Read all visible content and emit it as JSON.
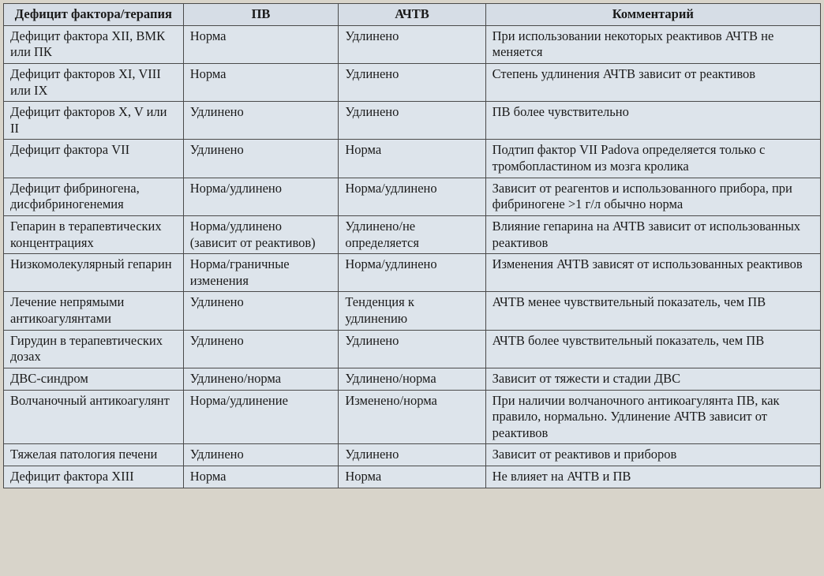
{
  "table": {
    "columns": [
      "Дефицит фактора/терапия",
      "ПВ",
      "АЧТВ",
      "Комментарий"
    ],
    "column_widths": [
      "22%",
      "19%",
      "18%",
      "41%"
    ],
    "header_background": "#d6dde6",
    "cell_background": "#dde4eb",
    "border_color": "#4a4a4a",
    "font_family": "Times New Roman",
    "font_size_pt": 12,
    "rows": [
      {
        "deficit": "Дефицит фактора XII, ВМК или ПК",
        "pv": "Норма",
        "aptt": "Удлинено",
        "comment": "При использовании некоторых реактивов АЧТВ не меняется"
      },
      {
        "deficit": "Дефицит факторов XI, VIII или IX",
        "pv": "Норма",
        "aptt": "Удлинено",
        "comment": "Степень удлинения АЧТВ зависит от реактивов"
      },
      {
        "deficit": "Дефицит факторов X, V или II",
        "pv": "Удлинено",
        "aptt": "Удлинено",
        "comment": "ПВ более чувствительно"
      },
      {
        "deficit": "Дефицит фактора VII",
        "pv": "Удлинено",
        "aptt": "Норма",
        "comment": "Подтип фактор VII Padova определяется только с тромбопластином из мозга кролика"
      },
      {
        "deficit": "Дефицит фибриногена, дисфибриногенемия",
        "pv": "Норма/удлинено",
        "aptt": "Норма/удлинено",
        "comment": "Зависит от реагентов и использованного прибора, при фибриногене >1 г/л обычно норма"
      },
      {
        "deficit": "Гепарин в терапевтических концентрациях",
        "pv": "Норма/удлинено (зависит от реактивов)",
        "aptt": "Удлинено/не определяется",
        "comment": "Влияние гепарина на АЧТВ зависит от использованных реактивов"
      },
      {
        "deficit": "Низкомолекулярный гепарин",
        "pv": "Норма/граничные изменения",
        "aptt": "Норма/удлинено",
        "comment": "Изменения АЧТВ зависят от использованных реактивов"
      },
      {
        "deficit": "Лечение непрямыми антикоагулянтами",
        "pv": "Удлинено",
        "aptt": "Тенденция к удлинению",
        "comment": "АЧТВ менее чувствительный показатель, чем ПВ"
      },
      {
        "deficit": "Гирудин в терапевтических дозах",
        "pv": "Удлинено",
        "aptt": "Удлинено",
        "comment": "АЧТВ более чувствительный показатель, чем ПВ"
      },
      {
        "deficit": "ДВС-синдром",
        "pv": "Удлинено/норма",
        "aptt": "Удлинено/норма",
        "comment": "Зависит от тяжести и стадии ДВС"
      },
      {
        "deficit": "Волчаночный антикоагулянт",
        "pv": "Норма/удлинение",
        "aptt": "Изменено/норма",
        "comment": "При наличии волчаночного антикоагулянта ПВ, как правило, нормально. Удлинение АЧТВ зависит от реактивов"
      },
      {
        "deficit": "Тяжелая патология печени",
        "pv": "Удлинено",
        "aptt": "Удлинено",
        "comment": "Зависит от реактивов и приборов"
      },
      {
        "deficit": "Дефицит фактора XIII",
        "pv": "Норма",
        "aptt": "Норма",
        "comment": "Не влияет на АЧТВ и ПВ"
      }
    ]
  }
}
